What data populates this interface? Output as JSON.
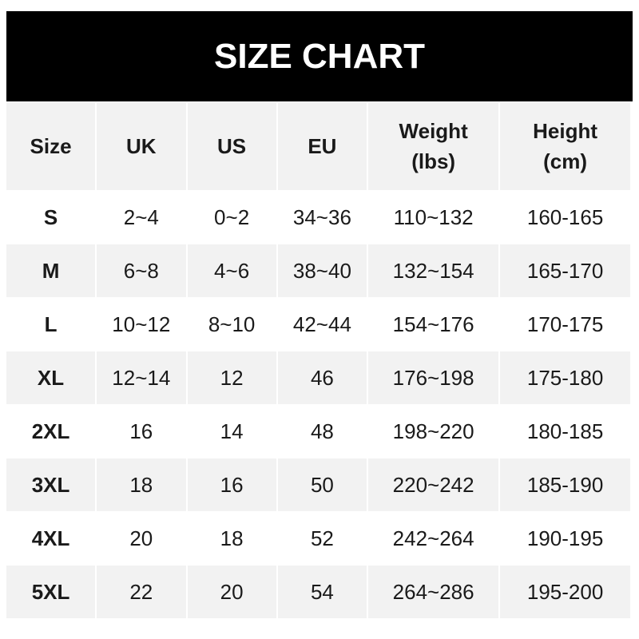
{
  "title": "SIZE CHART",
  "headers": [
    [
      "Size"
    ],
    [
      "UK"
    ],
    [
      "US"
    ],
    [
      "EU"
    ],
    [
      "Weight",
      "(lbs)"
    ],
    [
      "Height",
      "(cm)"
    ]
  ],
  "rows": [
    [
      "S",
      "2~4",
      "0~2",
      "34~36",
      "110~132",
      "160-165"
    ],
    [
      "M",
      "6~8",
      "4~6",
      "38~40",
      "132~154",
      "165-170"
    ],
    [
      "L",
      "10~12",
      "8~10",
      "42~44",
      "154~176",
      "170-175"
    ],
    [
      "XL",
      "12~14",
      "12",
      "46",
      "176~198",
      "175-180"
    ],
    [
      "2XL",
      "16",
      "14",
      "48",
      "198~220",
      "180-185"
    ],
    [
      "3XL",
      "18",
      "16",
      "50",
      "220~242",
      "185-190"
    ],
    [
      "4XL",
      "20",
      "18",
      "52",
      "242~264",
      "190-195"
    ],
    [
      "5XL",
      "22",
      "20",
      "54",
      "264~286",
      "195-200"
    ]
  ]
}
